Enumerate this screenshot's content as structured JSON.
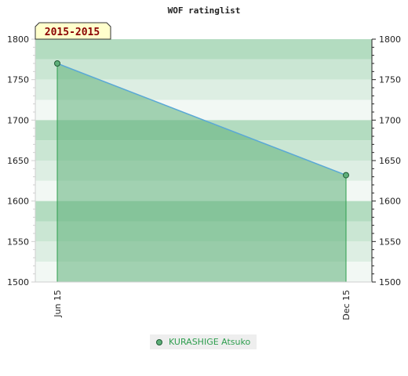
{
  "chart_data": {
    "type": "area",
    "title": "WOF ratinglist",
    "badge": "2015-2015",
    "categories": [
      "Jun 15",
      "Dec 15"
    ],
    "series": [
      {
        "name": "KURASHIGE Atsuko",
        "values": [
          1770,
          1632
        ]
      }
    ],
    "ylim": [
      1500,
      1800
    ],
    "y_ticks": [
      "1500",
      "1550",
      "1600",
      "1650",
      "1700",
      "1750",
      "1800"
    ],
    "grid": "horizontal bands",
    "legend_position": "bottom",
    "colors": {
      "fill": "#5fb07a",
      "line": "#5aa8d6",
      "marker": "#5fb07a",
      "legend_text": "#2e9e4e",
      "badge_bg": "#ffffcc"
    }
  }
}
